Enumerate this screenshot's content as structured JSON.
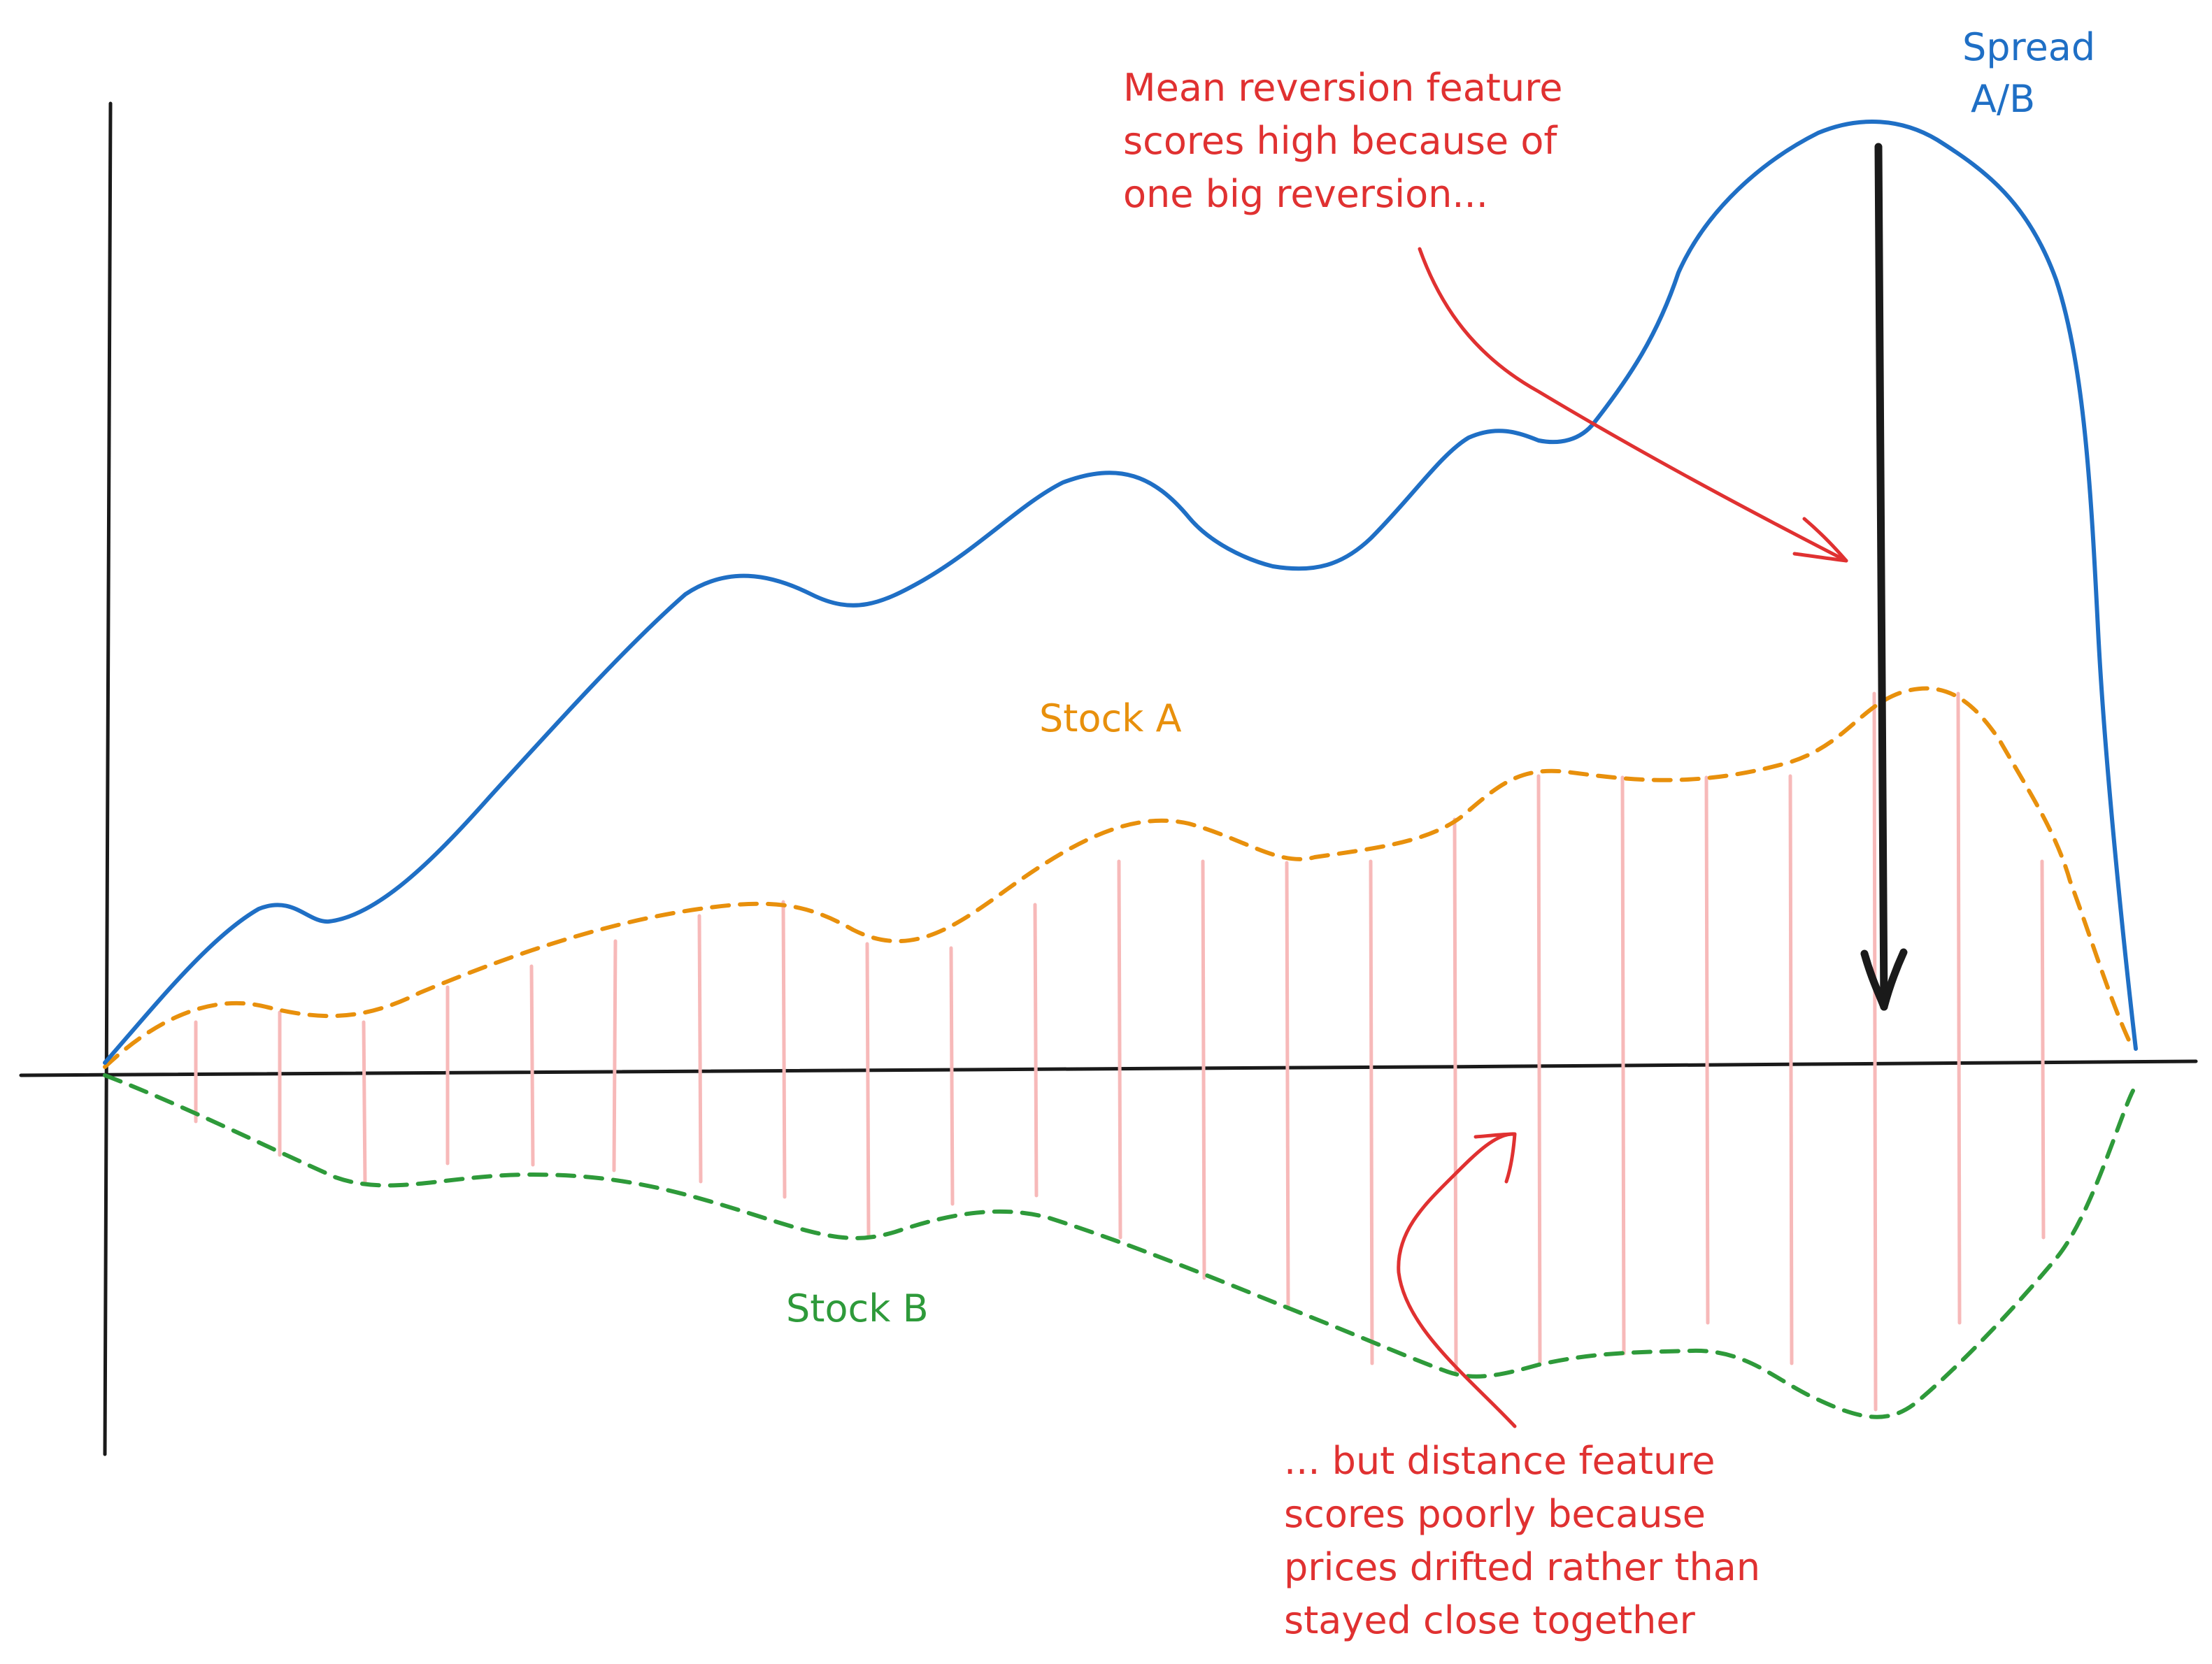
{
  "colors": {
    "spread": "#1f6fc5",
    "stock_a": "#e8900c",
    "stock_b": "#2e9a3a",
    "annotation": "#e03131",
    "distance_bars": "#f7b9b9",
    "axis": "#1a1a1a"
  },
  "labels": {
    "spread_line1": "Spread",
    "spread_line2": "A/B",
    "stock_a": "Stock A",
    "stock_b": "Stock B"
  },
  "annotations": {
    "mean_reversion": [
      "Mean reversion feature",
      "scores high because of",
      "one big reversion..."
    ],
    "distance": [
      "... but distance feature",
      "scores poorly because",
      "prices drifted rather than",
      "stayed close together"
    ]
  },
  "icons": {
    "reversion_arrow": "down-arrow-icon",
    "mean_reversion_pointer": "curved-arrow-icon",
    "distance_pointer": "curved-arrow-icon"
  }
}
